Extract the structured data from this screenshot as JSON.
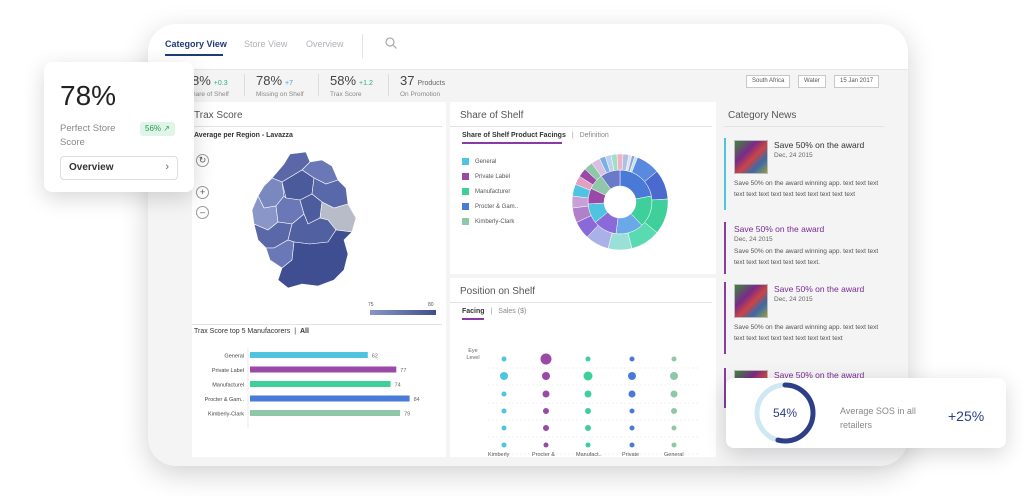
{
  "nav": {
    "tabs": [
      {
        "label": "Category View"
      },
      {
        "label": "Store View"
      },
      {
        "label": "Overview"
      }
    ]
  },
  "kpis": [
    {
      "value": "8%",
      "delta": "+0.3",
      "label": "hare of Shelf",
      "delta_color": "#2bb07a"
    },
    {
      "value": "78%",
      "delta": "+7",
      "label": "Missing on Shelf",
      "delta_color": "#3aa0e0"
    },
    {
      "value": "58%",
      "delta": "+1.2",
      "label": "Trax Score",
      "delta_color": "#2bb07a"
    },
    {
      "value": "37",
      "delta": "Products",
      "label": "On Promotion",
      "delta_color": "#666666"
    }
  ],
  "filters": [
    "South Africa",
    "Water",
    "15 Jan 2017"
  ],
  "trax": {
    "title": "Trax Score",
    "subtitle": "Average per Region - Lavazza",
    "map_legend_min": "75",
    "map_legend_max": "80",
    "bars_title": "Trax Score top 5 Manufacorers",
    "bars_all": "All"
  },
  "share": {
    "title": "Share of Shelf",
    "tab_active": "Share of Shelf Product Facings",
    "tab_other": "Definition",
    "legend": [
      {
        "label": "General",
        "color": "#4ec4e0"
      },
      {
        "label": "Private Label",
        "color": "#9a4aa6"
      },
      {
        "label": "Manufacturer",
        "color": "#3ecf9a"
      },
      {
        "label": "Procter & Gam..",
        "color": "#4a7ad8"
      },
      {
        "label": "Kimberly-Clark",
        "color": "#8ec8a8"
      }
    ]
  },
  "position": {
    "title": "Position on Shelf",
    "tab_active": "Facing",
    "tab_other": "Sales ($)",
    "row_label": "Eye Level",
    "columns": [
      "Kimberly",
      "Procter &",
      "Manufact..",
      "Private",
      "General"
    ]
  },
  "news": {
    "title": "Category News",
    "items": [
      {
        "title": "Save 50% on the award",
        "date": "Dec, 24 2015",
        "text": "Save 50% on the award winning app. text text text text text text text text text text text text text",
        "color": "#4ec4e0",
        "title_color": "#333333"
      },
      {
        "title": "Save 50% on the award",
        "date": "Dec, 24 2015",
        "text": "Save 50% on the award winning app. text text text text text text text text text text.",
        "color": "#8a3aa0",
        "title_color": "#7a2a90"
      },
      {
        "title": "Save 50% on the award",
        "date": "Dec, 24 2015",
        "text": "Save 50% on the award winning app. text text text text text text text text text text text text",
        "color": "#8a3aa0",
        "title_color": "#7a2a90"
      },
      {
        "title": "Save 50% on the award",
        "color": "#8a3aa0",
        "title_color": "#7a2a90"
      }
    ]
  },
  "float_score": {
    "value": "78%",
    "label": "Perfect Store Score",
    "badge": "56% ↗",
    "button": "Overview"
  },
  "float_sos": {
    "percent": "54%",
    "fraction": 0.54,
    "label": "Average SOS in all retailers",
    "delta": "+25%"
  },
  "chart_data": {
    "type": "bar",
    "categories": [
      "General",
      "Private Label",
      "Manufacturel",
      "Procter & Gam..",
      "Kimberly-Clark"
    ],
    "values": [
      62,
      77,
      74,
      84,
      79
    ],
    "colors": [
      "#4ec4e0",
      "#9a4aa6",
      "#3ecf9a",
      "#4a7ad8",
      "#8ec8a8"
    ],
    "title": "Trax Score top 5 Manufacorers",
    "xlim": [
      0,
      100
    ]
  }
}
